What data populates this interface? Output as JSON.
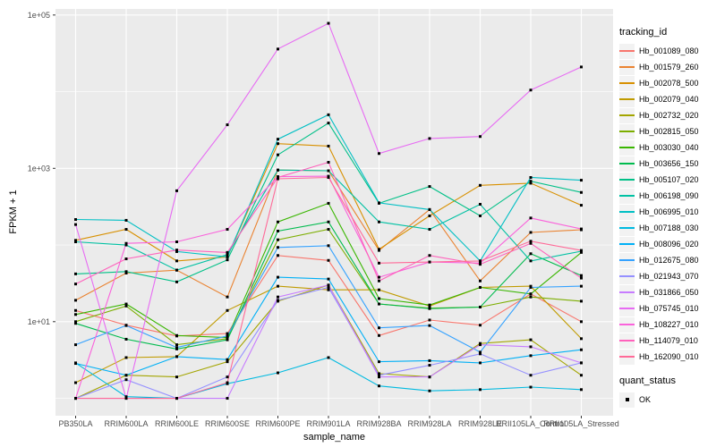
{
  "chart_data": {
    "type": "line",
    "title": "",
    "xlabel": "sample_name",
    "ylabel": "FPKM + 1",
    "y_scale": "log10",
    "ylim": [
      0.6,
      120000
    ],
    "grid": "on",
    "legend_position": "right",
    "x_categories": [
      "PB350LA",
      "RRIM600LA",
      "RRIM600LE",
      "RRIM600SE",
      "RRIM600PE",
      "RRIM901LA",
      "RRIM928BA",
      "RRIM928LA",
      "RRIM928LE",
      "RRII105LA_Control",
      "RRII105LA_Stressed"
    ],
    "y_ticks": [
      {
        "label": "1e+05",
        "value": 100000
      },
      {
        "label": "1e+03",
        "value": 1000
      },
      {
        "label": "1e+01",
        "value": 10
      }
    ],
    "y_minor_values": [
      1,
      100,
      10000
    ],
    "legend": {
      "title": "tracking_id"
    },
    "legend2": {
      "title": "quant_status",
      "items": [
        "OK"
      ]
    },
    "layout": {
      "panel_bg": "#EBEBEB",
      "grid_color": "#FFFFFF",
      "point_color": "#000000",
      "tick_color": "#333333",
      "tick_label_color": "#4D4D4D",
      "legend_key_bg": "#F2F2F2"
    },
    "series": [
      {
        "name": "Hb_001089_080",
        "color": "#F8766D",
        "values": [
          14,
          9,
          6.5,
          7,
          73,
          63,
          6.6,
          10.5,
          9,
          23,
          10
        ]
      },
      {
        "name": "Hb_001579_260",
        "color": "#EA8331",
        "values": [
          19,
          43,
          47,
          21,
          950,
          930,
          85,
          290,
          34,
          146,
          158
        ]
      },
      {
        "name": "Hb_002078_500",
        "color": "#D89000",
        "values": [
          115,
          160,
          62,
          70,
          2100,
          1950,
          88,
          240,
          600,
          640,
          330
        ]
      },
      {
        "name": "Hb_002079_040",
        "color": "#C09B00",
        "values": [
          1.6,
          3.4,
          3.5,
          14,
          29,
          26,
          26,
          16,
          28,
          29,
          6
        ]
      },
      {
        "name": "Hb_002732_020",
        "color": "#A3A500",
        "values": [
          1.0,
          2.0,
          1.9,
          3.0,
          18.5,
          30,
          2.1,
          1.9,
          5.2,
          5.8,
          2.0
        ]
      },
      {
        "name": "Hb_002815_050",
        "color": "#7CAE00",
        "values": [
          10,
          16,
          5.0,
          6.0,
          117,
          160,
          17,
          15,
          15.5,
          21,
          18.5
        ]
      },
      {
        "name": "Hb_003030_040",
        "color": "#39B600",
        "values": [
          12.4,
          17,
          6.6,
          6.2,
          200,
          350,
          20,
          16.5,
          28,
          23,
          80
        ]
      },
      {
        "name": "Hb_003656_150",
        "color": "#00BB4E",
        "values": [
          9.5,
          5.9,
          4.4,
          5.8,
          152,
          200,
          17,
          14.8,
          15.5,
          77,
          40
        ]
      },
      {
        "name": "Hb_005107_020",
        "color": "#00C087",
        "values": [
          42,
          45,
          33,
          64,
          1500,
          3900,
          350,
          580,
          240,
          680,
          485
        ]
      },
      {
        "name": "Hb_006198_090",
        "color": "#00C1A3",
        "values": [
          110,
          100,
          47,
          75,
          950,
          930,
          200,
          160,
          340,
          62,
          83
        ]
      },
      {
        "name": "Hb_006995_010",
        "color": "#00BFC4",
        "values": [
          215,
          210,
          82,
          70,
          2400,
          5000,
          355,
          290,
          62,
          760,
          700
        ]
      },
      {
        "name": "Hb_007188_030",
        "color": "#00BAE0",
        "values": [
          2.9,
          1.05,
          1.0,
          1.55,
          2.15,
          3.4,
          1.45,
          1.25,
          1.3,
          1.4,
          1.3
        ]
      },
      {
        "name": "Hb_008096_020",
        "color": "#00B0F6",
        "values": [
          2.85,
          2.0,
          3.5,
          3.2,
          38,
          36,
          3.0,
          3.1,
          2.9,
          3.6,
          4.3
        ]
      },
      {
        "name": "Hb_012675_080",
        "color": "#35A2FF",
        "values": [
          5,
          8.9,
          4.6,
          6.5,
          93,
          98,
          8.3,
          8.9,
          4.0,
          28,
          29
        ]
      },
      {
        "name": "Hb_021943_070",
        "color": "#9590FF",
        "values": [
          1.0,
          1.75,
          1.0,
          1.9,
          19,
          28,
          2.0,
          2.7,
          3.8,
          2.0,
          2.9
        ]
      },
      {
        "name": "Hb_031866_050",
        "color": "#C77CFF",
        "values": [
          1.0,
          1.0,
          1.0,
          1.0,
          21,
          30,
          1.9,
          1.9,
          5.0,
          4.7,
          2.9
        ]
      },
      {
        "name": "Hb_075745_010",
        "color": "#E76BF3",
        "values": [
          185,
          1.0,
          510,
          3700,
          36000,
          78000,
          1560,
          2450,
          2600,
          10500,
          21000
        ]
      },
      {
        "name": "Hb_108227_010",
        "color": "#FA62DB",
        "values": [
          1.0,
          105,
          110,
          160,
          780,
          790,
          38,
          60,
          58,
          225,
          162
        ]
      },
      {
        "name": "Hb_114079_010",
        "color": "#FF62BC",
        "values": [
          31,
          66,
          86,
          80,
          760,
          1200,
          34,
          73,
          56,
          105,
          37
        ]
      },
      {
        "name": "Hb_162090_010",
        "color": "#FF6A98",
        "values": [
          1.0,
          1.0,
          1.0,
          1.6,
          730,
          760,
          58,
          60,
          62,
          112,
          85
        ]
      }
    ]
  }
}
